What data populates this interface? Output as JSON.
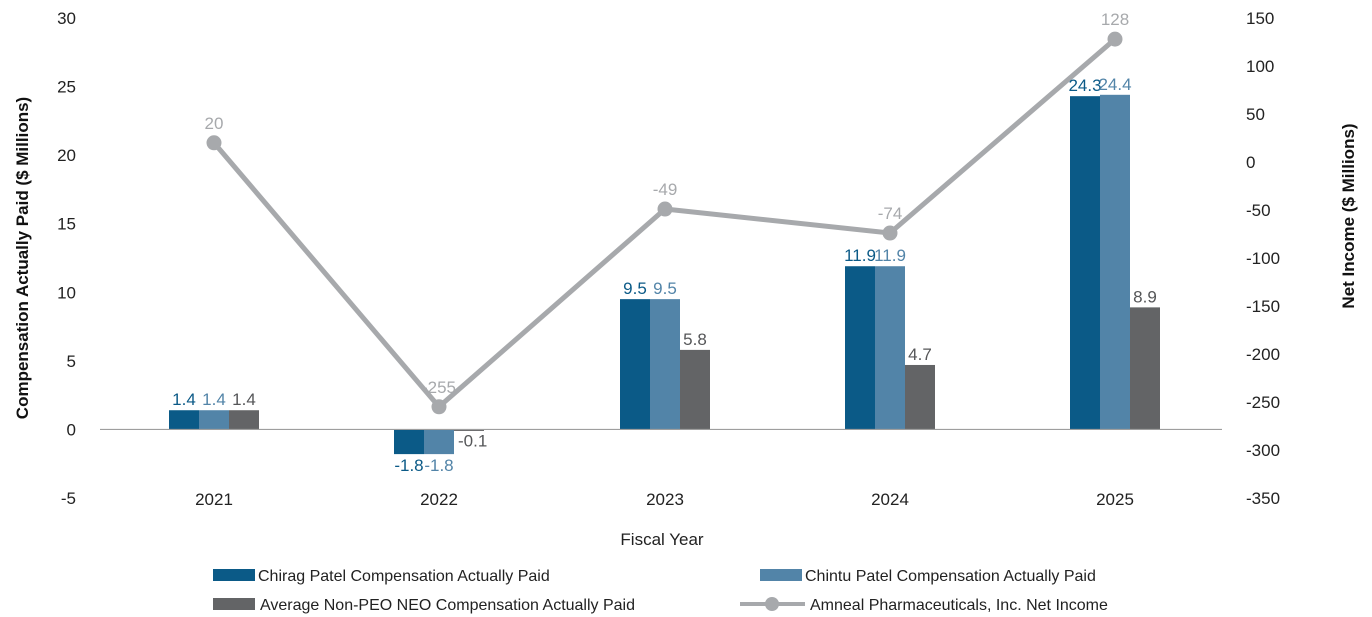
{
  "chart_data": {
    "type": "bar",
    "xlabel": "Fiscal Year",
    "ylabel_left": "Compensation Actually Paid ($ Millions)",
    "ylabel_right": "Net Income ($ Millions)",
    "categories": [
      "2021",
      "2022",
      "2023",
      "2024",
      "2025"
    ],
    "ylim_left": [
      -5,
      30
    ],
    "yticks_left": [
      "-5",
      "0",
      "5",
      "10",
      "15",
      "20",
      "25",
      "30"
    ],
    "ylim_right": [
      -350,
      150
    ],
    "yticks_right": [
      "-350",
      "-300",
      "-250",
      "-200",
      "-150",
      "-100",
      "-50",
      "0",
      "50",
      "100",
      "150"
    ],
    "grid": false,
    "legend_position": "bottom",
    "series": [
      {
        "name": "Chirag Patel Compensation Actually Paid",
        "kind": "bar",
        "axis": "left",
        "color": "#0b5a87",
        "values": [
          1.4,
          -1.8,
          9.5,
          11.9,
          24.3
        ],
        "labels": [
          "1.4",
          "-1.8",
          "9.5",
          "11.9",
          "24.3"
        ]
      },
      {
        "name": "Chintu Patel Compensation Actually Paid",
        "kind": "bar",
        "axis": "left",
        "color": "#5284a8",
        "values": [
          1.4,
          -1.8,
          9.5,
          11.9,
          24.4
        ],
        "labels": [
          "1.4",
          "-1.8",
          "9.5",
          "11.9",
          "24.4"
        ]
      },
      {
        "name": "Average Non-PEO NEO Compensation Actually Paid",
        "kind": "bar",
        "axis": "left",
        "color": "#636466",
        "values": [
          1.4,
          -0.1,
          5.8,
          4.7,
          8.9
        ],
        "labels": [
          "1.4",
          "-0.1",
          "5.8",
          "4.7",
          "8.9"
        ]
      },
      {
        "name": "Amneal Pharmaceuticals, Inc. Net Income",
        "kind": "line",
        "axis": "right",
        "color": "#a7a9ac",
        "values": [
          20,
          -255,
          -49,
          -74,
          128
        ],
        "labels": [
          "20",
          "-255",
          "-49",
          "-74",
          "128"
        ]
      }
    ]
  }
}
